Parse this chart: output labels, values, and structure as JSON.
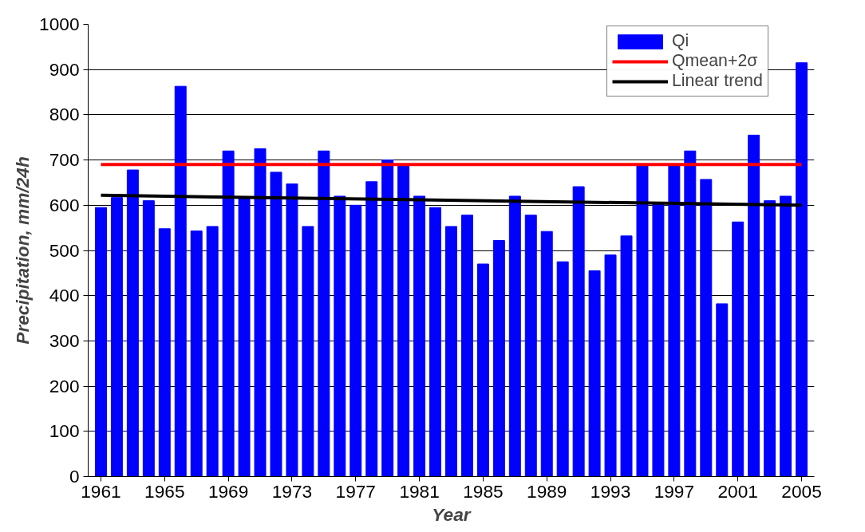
{
  "chart_data": {
    "type": "bar",
    "xlabel": "Year",
    "ylabel": "Precipitation, mm/24h",
    "x": [
      1961,
      1962,
      1963,
      1964,
      1965,
      1966,
      1967,
      1968,
      1969,
      1970,
      1971,
      1972,
      1973,
      1974,
      1975,
      1976,
      1977,
      1978,
      1979,
      1980,
      1981,
      1982,
      1983,
      1984,
      1985,
      1986,
      1987,
      1988,
      1989,
      1990,
      1991,
      1992,
      1993,
      1994,
      1995,
      1996,
      1997,
      1998,
      1999,
      2000,
      2001,
      2002,
      2003,
      2004,
      2005
    ],
    "series": [
      {
        "name": "Qi",
        "color": "#0000ff",
        "values": [
          595,
          617,
          678,
          610,
          548,
          863,
          543,
          553,
          720,
          615,
          725,
          673,
          647,
          553,
          720,
          620,
          600,
          652,
          700,
          690,
          620,
          595,
          553,
          578,
          470,
          522,
          620,
          578,
          542,
          475,
          641,
          455,
          490,
          532,
          690,
          605,
          690,
          720,
          657,
          382,
          563,
          755,
          610,
          620,
          915
        ]
      },
      {
        "name": "Linear trend",
        "type": "line",
        "color": "#000000",
        "x": [
          1961,
          2005
        ],
        "values": [
          622,
          600
        ]
      }
    ],
    "ref_lines": [
      {
        "axis": "y",
        "value": 690,
        "label": "Qmean+2σ",
        "color": "#ff0000"
      }
    ],
    "xlim": [
      1960.2,
      2005.8
    ],
    "ylim": [
      0,
      1000
    ],
    "xticks": [
      1961,
      1965,
      1969,
      1973,
      1977,
      1981,
      1985,
      1989,
      1993,
      1997,
      2001,
      2005
    ],
    "yticks": [
      0,
      100,
      200,
      300,
      400,
      500,
      600,
      700,
      800,
      900,
      1000
    ],
    "grid": "y",
    "legend": "top right"
  }
}
